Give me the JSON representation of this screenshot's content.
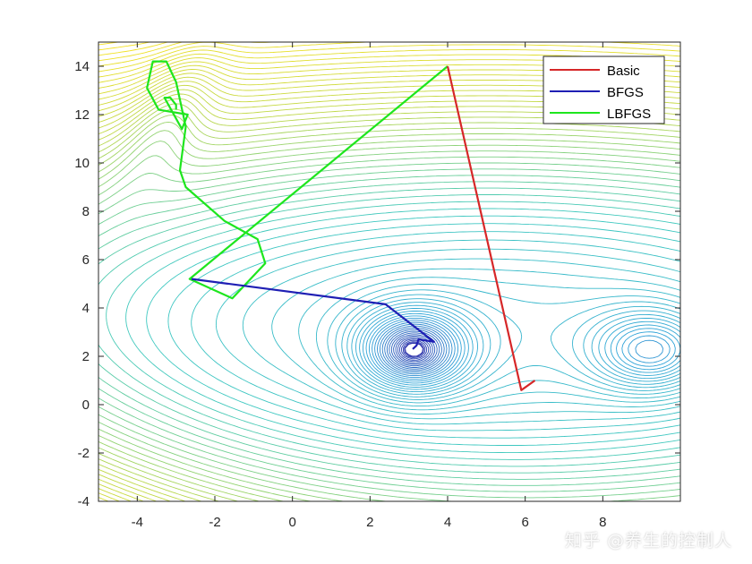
{
  "chart_data": {
    "type": "contour",
    "xlim": [
      -5,
      10
    ],
    "ylim": [
      -4,
      15
    ],
    "xticks": [
      -4,
      -2,
      0,
      2,
      4,
      6,
      8
    ],
    "yticks": [
      -4,
      -2,
      0,
      2,
      4,
      6,
      8,
      10,
      12,
      14
    ],
    "grid": false,
    "legend_position": "top-right",
    "colormap": [
      "#2b2ba8",
      "#2fa3d8",
      "#3fc9c0",
      "#bfd848",
      "#f9e21f"
    ],
    "series": [
      {
        "name": "Basic",
        "color": "#d62728",
        "x": [
          4.0,
          5.9,
          6.25
        ],
        "y": [
          14.0,
          0.6,
          1.0
        ]
      },
      {
        "name": "BFGS",
        "color": "#1f1fb4",
        "x": [
          -2.6,
          2.4,
          3.65,
          3.25,
          3.2,
          3.1
        ],
        "y": [
          5.2,
          4.15,
          2.6,
          2.7,
          2.45,
          2.3
        ]
      },
      {
        "name": "LBFGS",
        "color": "#1ee61e",
        "x": [
          4.0,
          -2.65,
          -1.55,
          -0.7,
          -0.9,
          -1.75,
          -2.75,
          -2.9,
          -2.75,
          -3.0,
          -3.25,
          -3.6,
          -3.75,
          -3.45,
          -2.7,
          -2.85,
          -3.3,
          -3.15,
          -3.0,
          -3.0
        ],
        "y": [
          14.0,
          5.2,
          4.4,
          5.85,
          6.85,
          7.6,
          9.0,
          9.7,
          11.5,
          13.35,
          14.2,
          14.2,
          13.1,
          12.2,
          12.0,
          11.4,
          12.7,
          12.7,
          12.4,
          12.2
        ]
      }
    ]
  },
  "watermark": "知乎 @养生的控制人"
}
